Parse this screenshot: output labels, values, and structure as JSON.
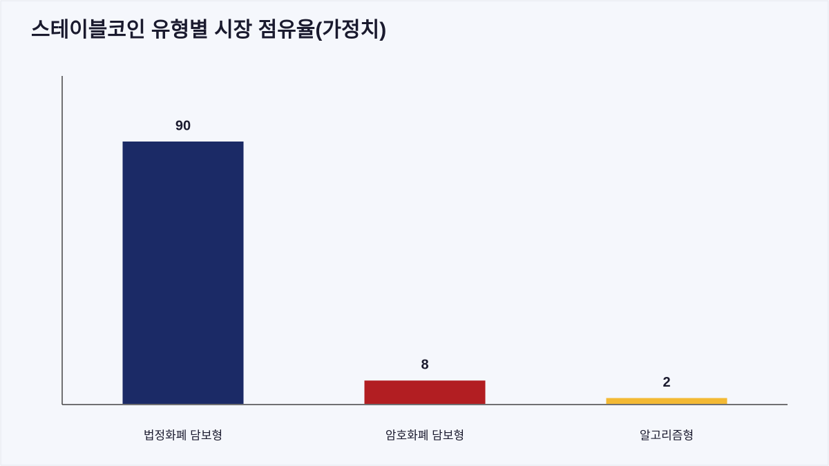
{
  "chart_data": {
    "type": "bar",
    "title": "스테이블코인 유형별 시장 점유율(가정치)",
    "categories": [
      "법정화폐 담보형",
      "암호화폐 담보형",
      "알고리즘형"
    ],
    "values": [
      90,
      8,
      2
    ],
    "colors": [
      "#1b2a66",
      "#b21e22",
      "#f3b934"
    ],
    "ylim": [
      0,
      112.5
    ]
  }
}
